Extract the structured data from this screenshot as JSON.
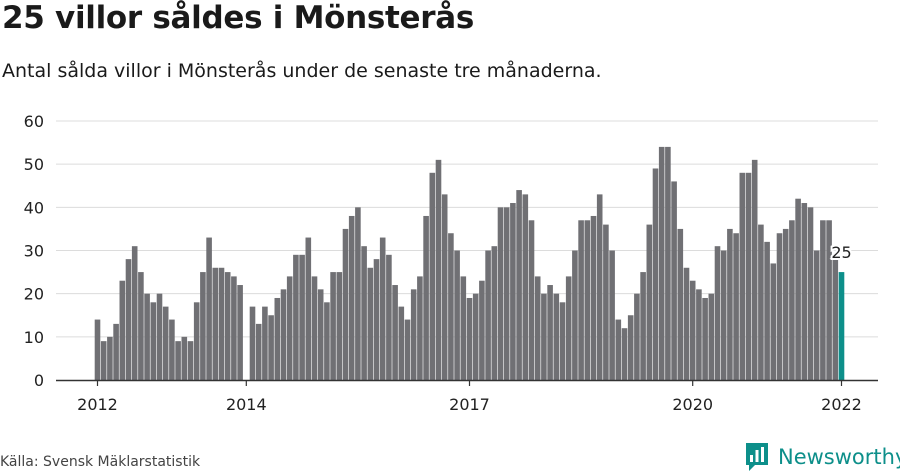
{
  "title": "25 villor såldes i Mönsterås",
  "subtitle": "Antal sålda villor i Mönsterås under de senaste tre månaderna.",
  "source": "Källa: Svensk Mäklarstatistik",
  "brand": "Newsworthy",
  "colors": {
    "bar": "#707074",
    "highlight": "#0d8f8a",
    "grid": "#dcdcdc",
    "axis": "#333333"
  },
  "chart_data": {
    "type": "bar",
    "title": "25 villor såldes i Mönsterås",
    "xlabel": "",
    "ylabel": "",
    "ylim": [
      0,
      60
    ],
    "yticks": [
      0,
      10,
      20,
      30,
      40,
      50,
      60
    ],
    "period": "monthly, Jan 2012 – Jan 2022 (rolling three-month count)",
    "xtick_labels": [
      {
        "label": "2012",
        "index": 0
      },
      {
        "label": "2014",
        "index": 24
      },
      {
        "label": "2017",
        "index": 60
      },
      {
        "label": "2020",
        "index": 96
      },
      {
        "label": "2022",
        "index": 120
      }
    ],
    "values": [
      14,
      9,
      10,
      13,
      23,
      28,
      31,
      25,
      20,
      18,
      20,
      17,
      14,
      9,
      10,
      9,
      18,
      25,
      33,
      26,
      26,
      25,
      24,
      22,
      0,
      17,
      13,
      17,
      15,
      19,
      21,
      24,
      29,
      29,
      33,
      24,
      21,
      18,
      25,
      25,
      35,
      38,
      40,
      31,
      26,
      28,
      33,
      29,
      22,
      17,
      14,
      21,
      24,
      38,
      48,
      51,
      43,
      34,
      30,
      24,
      19,
      20,
      23,
      30,
      31,
      40,
      40,
      41,
      44,
      43,
      37,
      24,
      20,
      22,
      20,
      18,
      24,
      30,
      37,
      37,
      38,
      43,
      36,
      30,
      14,
      12,
      15,
      20,
      25,
      36,
      49,
      54,
      54,
      46,
      35,
      26,
      23,
      21,
      19,
      20,
      31,
      30,
      35,
      34,
      48,
      48,
      51,
      36,
      32,
      27,
      34,
      35,
      37,
      42,
      41,
      40,
      30,
      37,
      37,
      28,
      25
    ],
    "highlight_last": true,
    "annotation": {
      "text": "25",
      "index": 120
    }
  }
}
